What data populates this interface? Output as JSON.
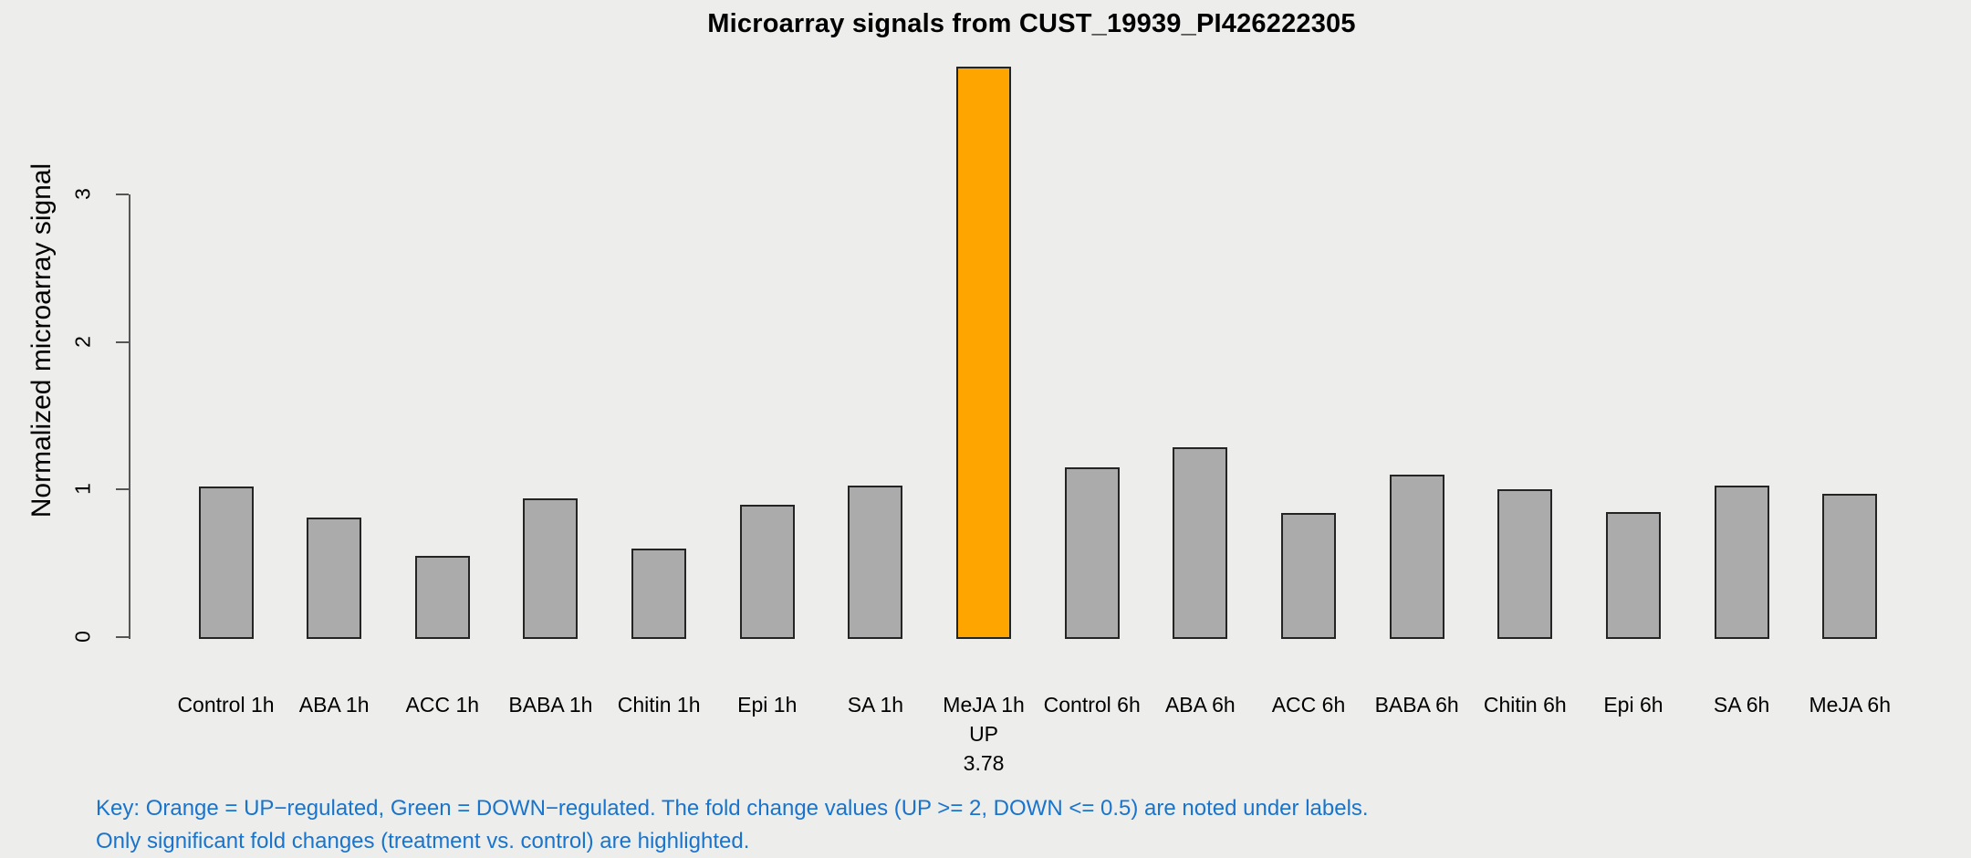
{
  "chart_data": {
    "type": "bar",
    "title": "Microarray signals from CUST_19939_PI426222305",
    "ylabel": "Normalized microarray signal",
    "xlabel": "",
    "ylim": [
      0,
      3.9
    ],
    "yticks": [
      0,
      1,
      2,
      3
    ],
    "grid": false,
    "legend_position": "none",
    "categories": [
      "Control 1h",
      "ABA 1h",
      "ACC 1h",
      "BABA 1h",
      "Chitin 1h",
      "Epi 1h",
      "SA 1h",
      "MeJA 1h",
      "Control 6h",
      "ABA 6h",
      "ACC 6h",
      "BABA 6h",
      "Chitin 6h",
      "Epi 6h",
      "SA 6h",
      "MeJA 6h"
    ],
    "values": [
      1.02,
      0.81,
      0.55,
      0.94,
      0.6,
      0.9,
      1.03,
      3.87,
      1.15,
      1.29,
      0.84,
      1.1,
      1.0,
      0.85,
      1.03,
      0.97
    ],
    "bar_states": [
      "normal",
      "normal",
      "normal",
      "normal",
      "normal",
      "normal",
      "normal",
      "up",
      "normal",
      "normal",
      "normal",
      "normal",
      "normal",
      "normal",
      "normal",
      "normal"
    ],
    "label_notes": [
      [],
      [],
      [],
      [],
      [],
      [],
      [],
      [
        "UP",
        "3.78"
      ],
      [],
      [],
      [],
      [],
      [],
      [],
      [],
      []
    ],
    "colors": {
      "background": "#EDEDEB",
      "bar_normal": "#ABABAB",
      "bar_up": "#FFA500",
      "bar_border": "#242424",
      "axis": "#555555",
      "text": "#000000",
      "key_text": "#1874CD"
    }
  },
  "footer": {
    "key_line1": "Key: Orange = UP−regulated, Green = DOWN−regulated. The fold change values (UP >= 2, DOWN <= 0.5) are noted under labels.",
    "key_line2": "Only significant fold changes (treatment vs. control) are highlighted."
  }
}
